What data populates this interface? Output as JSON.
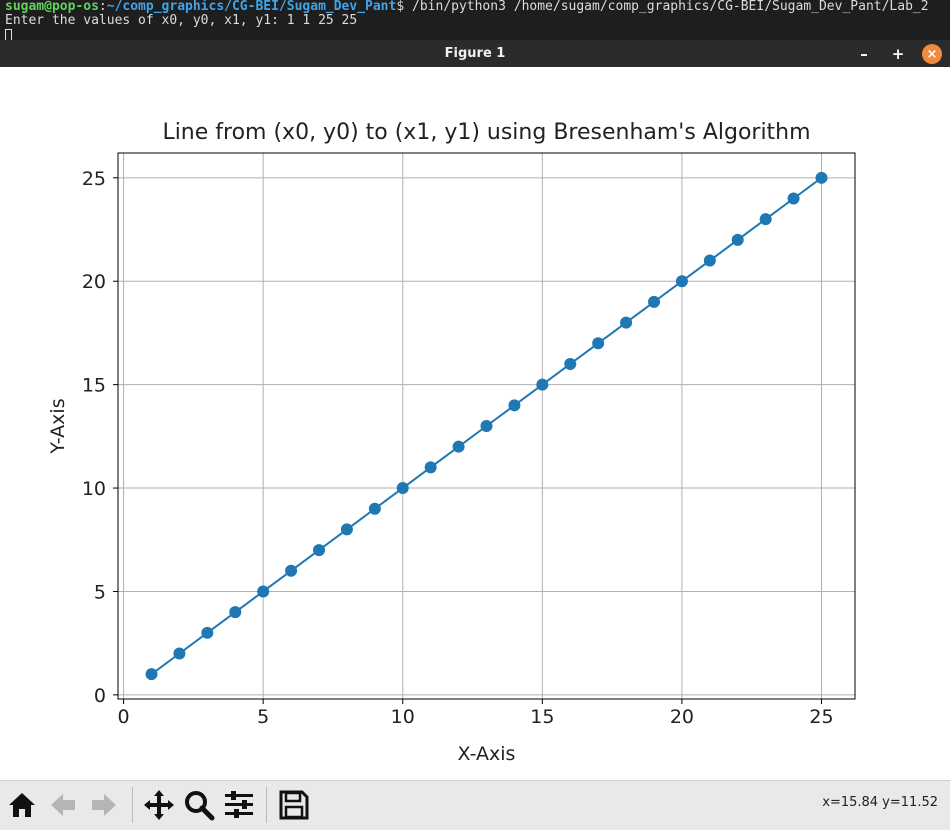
{
  "terminal": {
    "user_host": "sugam@pop-os",
    "colon": ":",
    "path": "~/comp_graphics/CG-BEI/Sugam_Dev_Pant",
    "prompt_cmd": "$ /bin/python3 /home/sugam/comp_graphics/CG-BEI/Sugam_Dev_Pant/Lab_2",
    "line2": "Enter the values of x0, y0, x1, y1: 1 1 25 25"
  },
  "window": {
    "title": "Figure 1",
    "minimize_glyph": "–",
    "maximize_glyph": "+",
    "close_glyph": "×"
  },
  "toolbar": {
    "coords_text": "x=15.84 y=11.52",
    "buttons": [
      "home-icon",
      "back-arrow-icon",
      "forward-arrow-icon",
      "pan-icon",
      "zoom-icon",
      "configure-subplots-icon",
      "save-icon"
    ]
  },
  "chart_data": {
    "type": "line",
    "title": "Line from (x0, y0) to (x1, y1) using Bresenham's Algorithm",
    "xlabel": "X-Axis",
    "ylabel": "Y-Axis",
    "x": [
      1,
      2,
      3,
      4,
      5,
      6,
      7,
      8,
      9,
      10,
      11,
      12,
      13,
      14,
      15,
      16,
      17,
      18,
      19,
      20,
      21,
      22,
      23,
      24,
      25
    ],
    "y": [
      1,
      2,
      3,
      4,
      5,
      6,
      7,
      8,
      9,
      10,
      11,
      12,
      13,
      14,
      15,
      16,
      17,
      18,
      19,
      20,
      21,
      22,
      23,
      24,
      25
    ],
    "xlim": [
      -0.2,
      26.2
    ],
    "ylim": [
      -0.2,
      26.2
    ],
    "xticks": [
      0,
      5,
      10,
      15,
      20,
      25
    ],
    "yticks": [
      0,
      5,
      10,
      15,
      20,
      25
    ],
    "grid": true,
    "marker": "o",
    "color": "#1f77b4"
  }
}
